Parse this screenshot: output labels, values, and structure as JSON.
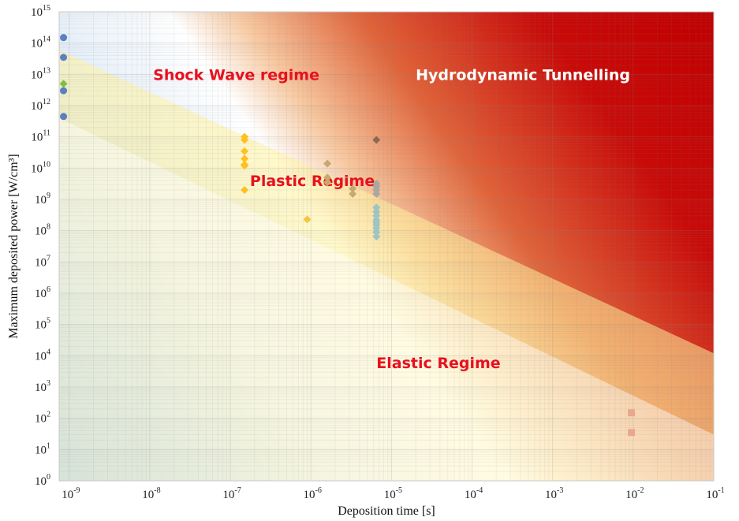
{
  "chart_data": {
    "type": "scatter",
    "xlabel": "Deposition time [s]",
    "ylabel": "Maximum deposited power [W/cm³]",
    "xscale": "log",
    "yscale": "log",
    "xlim": [
      7.5e-10,
      0.1
    ],
    "ylim": [
      1,
      1000000000000000
    ],
    "x_ticks": [
      {
        "base": "10",
        "exp": "-9",
        "value": 1e-09
      },
      {
        "base": "10",
        "exp": "-8",
        "value": 1e-08
      },
      {
        "base": "10",
        "exp": "-7",
        "value": 1e-07
      },
      {
        "base": "10",
        "exp": "-6",
        "value": 1e-06
      },
      {
        "base": "10",
        "exp": "-5",
        "value": 1e-05
      },
      {
        "base": "10",
        "exp": "-4",
        "value": 0.0001
      },
      {
        "base": "10",
        "exp": "-3",
        "value": 0.001
      },
      {
        "base": "10",
        "exp": "-2",
        "value": 0.01
      },
      {
        "base": "10",
        "exp": "-1",
        "value": 0.1
      }
    ],
    "y_ticks": [
      {
        "base": "10",
        "exp": "0",
        "value": 1
      },
      {
        "base": "10",
        "exp": "1",
        "value": 10
      },
      {
        "base": "10",
        "exp": "2",
        "value": 100
      },
      {
        "base": "10",
        "exp": "3",
        "value": 1000
      },
      {
        "base": "10",
        "exp": "4",
        "value": 10000
      },
      {
        "base": "10",
        "exp": "5",
        "value": 100000
      },
      {
        "base": "10",
        "exp": "6",
        "value": 1000000
      },
      {
        "base": "10",
        "exp": "7",
        "value": 10000000
      },
      {
        "base": "10",
        "exp": "8",
        "value": 100000000
      },
      {
        "base": "10",
        "exp": "9",
        "value": 1000000000
      },
      {
        "base": "10",
        "exp": "10",
        "value": 10000000000
      },
      {
        "base": "10",
        "exp": "11",
        "value": 100000000000
      },
      {
        "base": "10",
        "exp": "12",
        "value": 1000000000000
      },
      {
        "base": "10",
        "exp": "13",
        "value": 10000000000000
      },
      {
        "base": "10",
        "exp": "14",
        "value": 100000000000000
      },
      {
        "base": "10",
        "exp": "15",
        "value": 1000000000000000
      }
    ],
    "grid": true,
    "annotations": [
      {
        "text": "Shock Wave regime",
        "x": 1.1e-08,
        "y": 10000000000000,
        "color": "#e8101e"
      },
      {
        "text": "Hydrodynamic Tunnelling",
        "x": 2e-05,
        "y": 10000000000000,
        "color": "#ffffff"
      },
      {
        "text": "Plastic Regime",
        "x": 1.75e-07,
        "y": 4000000000,
        "color": "#e8101e"
      },
      {
        "text": "Elastic Regime",
        "x": 6.5e-06,
        "y": 6000,
        "color": "#e8101e"
      }
    ],
    "bands": [
      {
        "from": [
          7.5e-10,
          60000000000000
        ],
        "to": [
          0.1,
          12000
        ],
        "color": "#fff3a0"
      },
      {
        "from": [
          7.5e-10,
          400000000000
        ],
        "to": [
          0.1,
          30
        ],
        "color": "#ffffff"
      }
    ],
    "series": [
      {
        "marker": "circle",
        "color": "#5b7fbf",
        "x": [
          8.5e-10,
          8.5e-10,
          8.5e-10,
          8.5e-10
        ],
        "y": [
          150000000000000,
          35000000000000,
          3000000000000,
          450000000000
        ]
      },
      {
        "marker": "diamond",
        "color": "#7fbf3f",
        "x": [
          8.5e-10
        ],
        "y": [
          5000000000000
        ]
      },
      {
        "marker": "diamond",
        "color": "#ffc020",
        "x": [
          1.5e-07,
          1.5e-07,
          1.5e-07,
          1.5e-07,
          1.5e-07,
          1.5e-07,
          1.5e-07
        ],
        "y": [
          100000000000,
          80000000000,
          35000000000,
          20000000000,
          13000000000,
          12000000000,
          2000000000
        ]
      },
      {
        "marker": "diamond",
        "color": "#f2c840",
        "x": [
          9e-07
        ],
        "y": [
          230000000
        ]
      },
      {
        "marker": "diamond",
        "color": "#c8a870",
        "x": [
          1.6e-06,
          1.6e-06,
          1.6e-06,
          3.3e-06,
          3.3e-06
        ],
        "y": [
          14000000000,
          5000000000,
          3500000000,
          2200000000,
          1500000000
        ]
      },
      {
        "marker": "diamond",
        "color": "#8a6a50",
        "x": [
          6.5e-06
        ],
        "y": [
          80000000000
        ]
      },
      {
        "marker": "diamond",
        "color": "#a8a8a0",
        "x": [
          6.5e-06,
          6.5e-06,
          6.5e-06,
          6.5e-06
        ],
        "y": [
          3200000000,
          2600000000,
          2000000000,
          1500000000
        ]
      },
      {
        "marker": "diamond",
        "color": "#9ec4c4",
        "x": [
          6.5e-06,
          6.5e-06,
          6.5e-06,
          6.5e-06,
          6.5e-06,
          6.5e-06,
          6.5e-06,
          6.5e-06,
          6.5e-06
        ],
        "y": [
          550000000,
          400000000,
          300000000,
          220000000,
          180000000,
          150000000,
          120000000,
          90000000,
          65000000
        ]
      },
      {
        "marker": "square",
        "color": "#e8a890",
        "x": [
          0.0095,
          0.0095
        ],
        "y": [
          150,
          35
        ]
      }
    ]
  }
}
